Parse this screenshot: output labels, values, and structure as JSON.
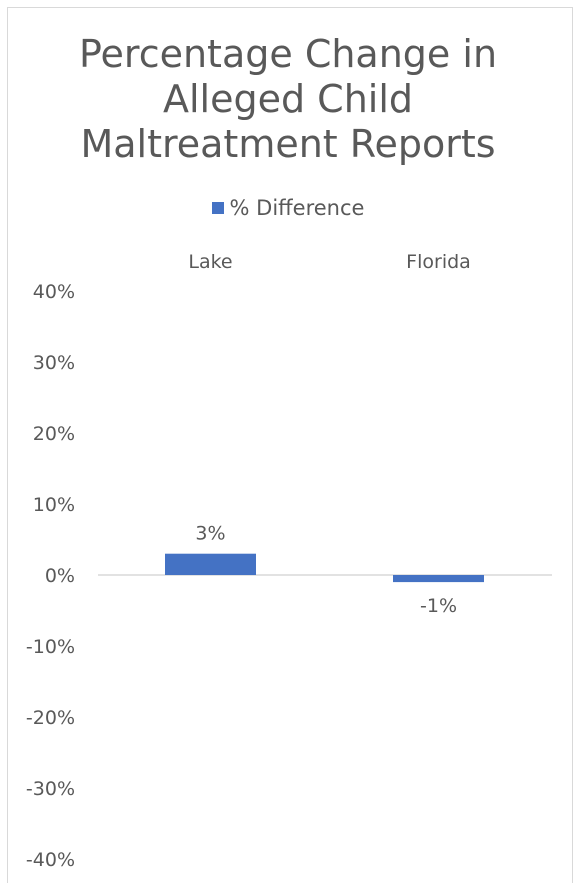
{
  "chart_data": {
    "type": "bar",
    "title": "Percentage Change in Alleged Child Maltreatment Reports",
    "title_lines": [
      "Percentage Change in",
      "Alleged Child",
      "Maltreatment Reports"
    ],
    "categories": [
      "Lake",
      "Florida"
    ],
    "series": [
      {
        "name": "% Difference",
        "values": [
          0.03,
          -0.01
        ],
        "color": "#4472c4"
      }
    ],
    "data_labels": [
      "3%",
      "-1%"
    ],
    "ylim": [
      -0.4,
      0.4
    ],
    "yticks": [
      0.4,
      0.3,
      0.2,
      0.1,
      0,
      -0.1,
      -0.2,
      -0.3,
      -0.4
    ],
    "ytick_labels": [
      "40%",
      "30%",
      "20%",
      "10%",
      "0%",
      "-10%",
      "-20%",
      "-30%",
      "-40%"
    ],
    "category_labels_position": "top",
    "legend_position": "top",
    "gridlines": false
  }
}
